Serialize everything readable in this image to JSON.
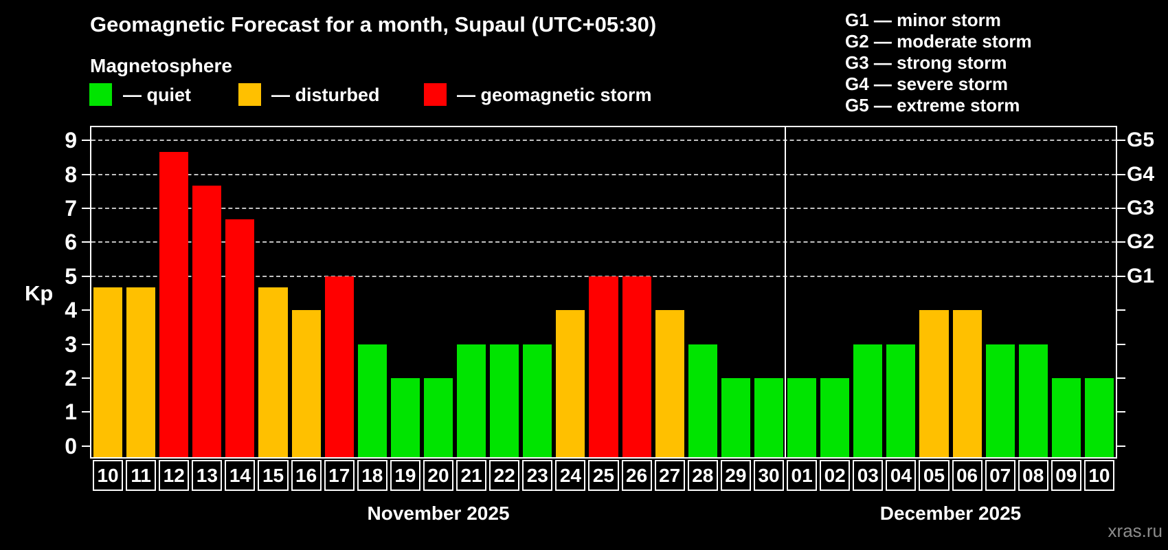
{
  "header": {
    "title": "Geomagnetic Forecast for a month, Supaul (UTC+05:30)",
    "subtitle": "Magnetosphere"
  },
  "legend": {
    "items": [
      {
        "label": "— quiet",
        "status": "quiet"
      },
      {
        "label": "— disturbed",
        "status": "disturbed"
      },
      {
        "label": "— geomagnetic storm",
        "status": "storm"
      }
    ]
  },
  "g_legend": [
    "G1 — minor storm",
    "G2 — moderate storm",
    "G3 — strong storm",
    "G4 — severe storm",
    "G5 — extreme storm"
  ],
  "colors": {
    "quiet": "#00e400",
    "disturbed": "#ffc000",
    "storm": "#ff0000",
    "background": "#000000",
    "axis": "#ffffff",
    "grid": "#c3c3c3",
    "watermark": "#8c8c8c"
  },
  "axis": {
    "kp_label": "Kp",
    "yticks": [
      0,
      1,
      2,
      3,
      4,
      5,
      6,
      7,
      8,
      9
    ],
    "g_ticks": [
      {
        "label": "G1",
        "kp": 5
      },
      {
        "label": "G2",
        "kp": 6
      },
      {
        "label": "G3",
        "kp": 7
      },
      {
        "label": "G4",
        "kp": 8
      },
      {
        "label": "G5",
        "kp": 9
      }
    ]
  },
  "watermark": "xras.ru",
  "chart_data": {
    "type": "bar",
    "title": "Geomagnetic Forecast for a month, Supaul (UTC+05:30)",
    "ylabel": "Kp",
    "ylim": [
      -0.33,
      9.39
    ],
    "gridlines_at": [
      5,
      6,
      7,
      8,
      9
    ],
    "legend_position": "top",
    "status_rule": "kp<4 quiet (green), 4<=kp<5 disturbed (orange), kp>=5 storm (red)",
    "months": [
      {
        "label": "November 2025",
        "days": [
          {
            "date": "10",
            "kp": 4.67,
            "status": "disturbed"
          },
          {
            "date": "11",
            "kp": 4.67,
            "status": "disturbed"
          },
          {
            "date": "12",
            "kp": 8.67,
            "status": "storm"
          },
          {
            "date": "13",
            "kp": 7.67,
            "status": "storm"
          },
          {
            "date": "14",
            "kp": 6.67,
            "status": "storm"
          },
          {
            "date": "15",
            "kp": 4.67,
            "status": "disturbed"
          },
          {
            "date": "16",
            "kp": 4,
            "status": "disturbed"
          },
          {
            "date": "17",
            "kp": 5,
            "status": "storm"
          },
          {
            "date": "18",
            "kp": 3,
            "status": "quiet"
          },
          {
            "date": "19",
            "kp": 2,
            "status": "quiet"
          },
          {
            "date": "20",
            "kp": 2,
            "status": "quiet"
          },
          {
            "date": "21",
            "kp": 3,
            "status": "quiet"
          },
          {
            "date": "22",
            "kp": 3,
            "status": "quiet"
          },
          {
            "date": "23",
            "kp": 3,
            "status": "quiet"
          },
          {
            "date": "24",
            "kp": 4,
            "status": "disturbed"
          },
          {
            "date": "25",
            "kp": 5,
            "status": "storm"
          },
          {
            "date": "26",
            "kp": 5,
            "status": "storm"
          },
          {
            "date": "27",
            "kp": 4,
            "status": "disturbed"
          },
          {
            "date": "28",
            "kp": 3,
            "status": "quiet"
          },
          {
            "date": "29",
            "kp": 2,
            "status": "quiet"
          },
          {
            "date": "30",
            "kp": 2,
            "status": "quiet"
          }
        ]
      },
      {
        "label": "December 2025",
        "days": [
          {
            "date": "01",
            "kp": 2,
            "status": "quiet"
          },
          {
            "date": "02",
            "kp": 2,
            "status": "quiet"
          },
          {
            "date": "03",
            "kp": 3,
            "status": "quiet"
          },
          {
            "date": "04",
            "kp": 3,
            "status": "quiet"
          },
          {
            "date": "05",
            "kp": 4,
            "status": "disturbed"
          },
          {
            "date": "06",
            "kp": 4,
            "status": "disturbed"
          },
          {
            "date": "07",
            "kp": 3,
            "status": "quiet"
          },
          {
            "date": "08",
            "kp": 3,
            "status": "quiet"
          },
          {
            "date": "09",
            "kp": 2,
            "status": "quiet"
          },
          {
            "date": "10",
            "kp": 2,
            "status": "quiet"
          }
        ]
      }
    ]
  }
}
